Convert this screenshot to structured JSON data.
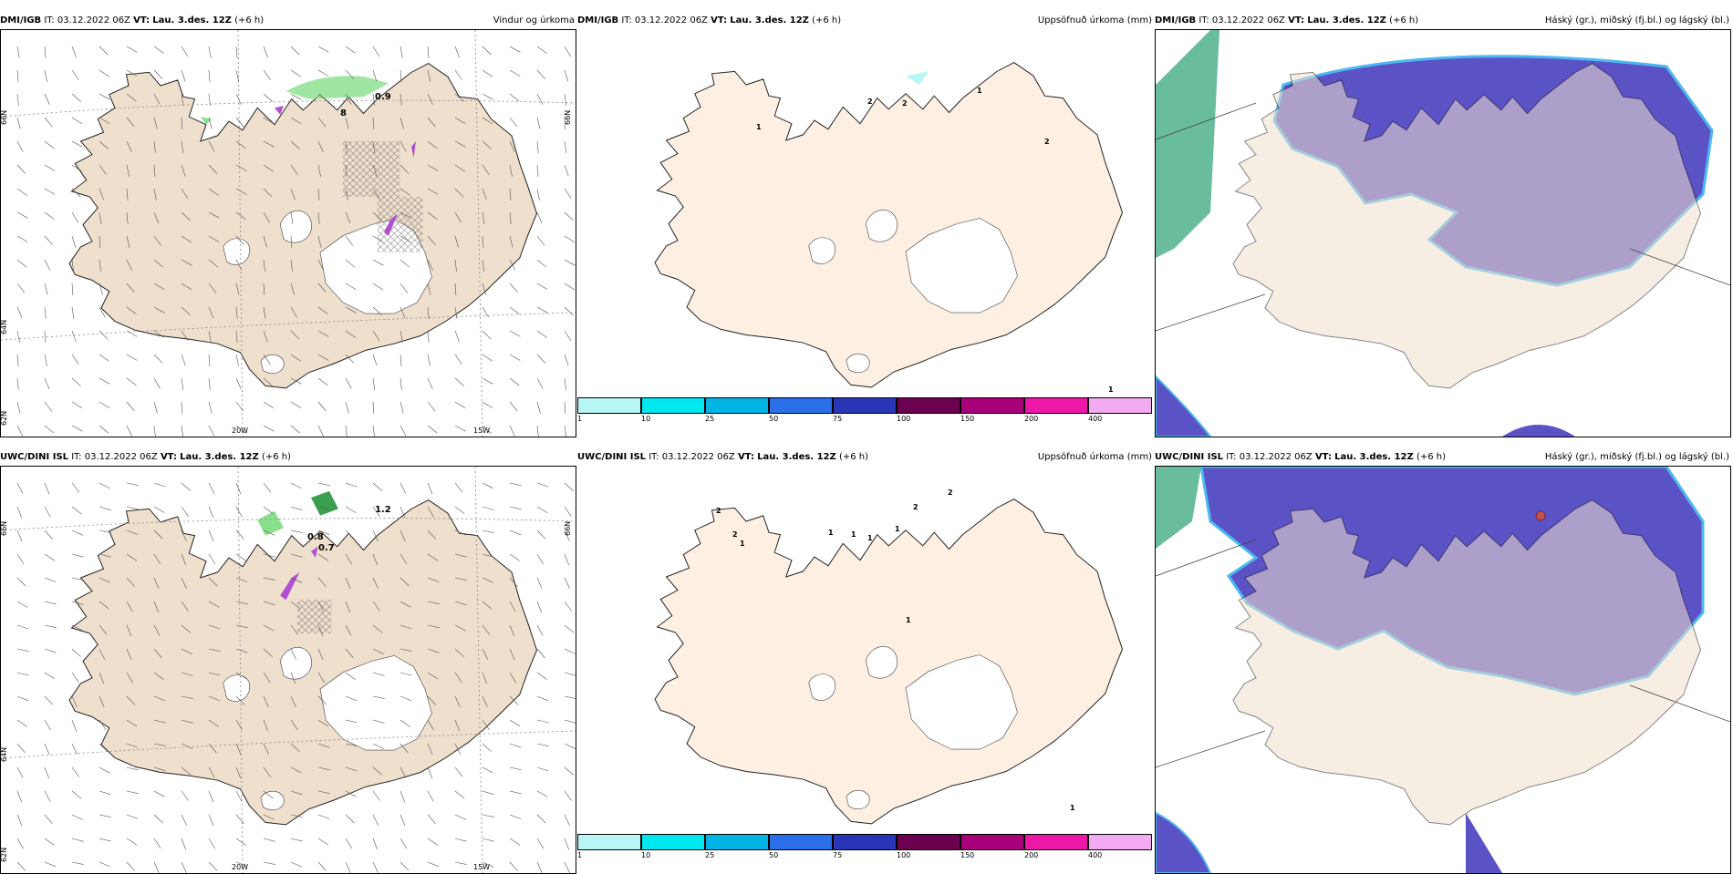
{
  "rows": [
    {
      "model": "DMI/IGB",
      "it_label": "IT:",
      "it_value": "03.12.2022 06Z",
      "vt_label": "VT:",
      "vt_value": "Lau. 3.des. 12Z",
      "lead": "(+6 h)"
    },
    {
      "model": "UWC/DINI ISL",
      "it_label": "IT:",
      "it_value": "03.12.2022 06Z",
      "vt_label": "VT:",
      "vt_value": "Lau. 3.des. 12Z",
      "lead": "(+6 h)"
    }
  ],
  "panel_titles": {
    "wind": "Vindur og úrkoma",
    "accum": "Uppsöfnuð úrkoma (mm)",
    "cloud": "Háský (gr.), miðský (fj.bl.) og lágský (bl.)"
  },
  "grid_labels": {
    "lat66": "66N",
    "lat64": "64N",
    "lat62": "62N",
    "lon20": "20W",
    "lon15": "15W"
  },
  "precip_labels_top": [
    "0.9",
    "8"
  ],
  "precip_labels_bottom": [
    "1.2",
    "0.8",
    "0.7"
  ],
  "accum_labels_top": [
    "2",
    "2",
    "1",
    "1",
    "2",
    "1"
  ],
  "accum_labels_bottom": [
    "2",
    "2",
    "1",
    "1",
    "1",
    "1",
    "1",
    "2",
    "2",
    "1",
    "1"
  ],
  "colorbar": {
    "labels": [
      "1",
      "10",
      "25",
      "50",
      "75",
      "100",
      "150",
      "200",
      "400"
    ],
    "colors": [
      "#b8f5f5",
      "#00e8ef",
      "#00b4e6",
      "#2a6ee8",
      "#2a36b8",
      "#6c0050",
      "#a8007a",
      "#ee18a8",
      "#f2aaf0"
    ]
  },
  "colors": {
    "land": "#efdfcd",
    "land_accum": "#fdf0e3",
    "ice": "#ffffff",
    "sea": "#ffffff",
    "low_cloud": "#5b52c6",
    "low_cloud_edge": "#4cb8f0",
    "high_cloud": "#4fb28c",
    "precip": "#88e08c",
    "precip_dark": "#3aa050",
    "snow": "#b050d0"
  }
}
